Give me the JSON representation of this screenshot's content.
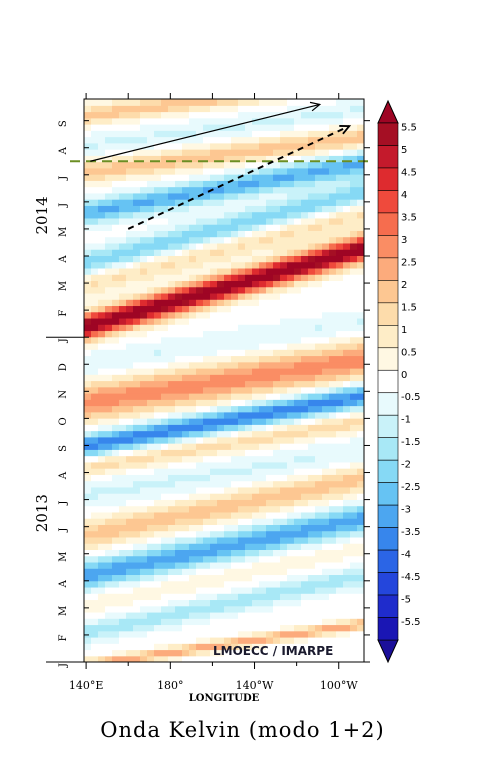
{
  "chart_data": {
    "type": "heatmap",
    "title": "Onda Kelvin (modo 1+2)",
    "xlabel": "LONGITUDE",
    "ylabel": "",
    "credit": "LMOECC / IMARPE",
    "x_ticks": [
      "140°E",
      "180°",
      "140°W",
      "100°W"
    ],
    "x_tick_lon": [
      140,
      180,
      220,
      260
    ],
    "xlim": [
      139,
      272
    ],
    "y_month_labels": [
      "J",
      "F",
      "M",
      "A",
      "M",
      "J",
      "J",
      "A",
      "S",
      "O",
      "N",
      "D",
      "J",
      "F",
      "M",
      "A",
      "M",
      "J",
      "J",
      "A",
      "S"
    ],
    "y_month_index": [
      0,
      1,
      2,
      3,
      4,
      5,
      6,
      7,
      8,
      9,
      10,
      11,
      12,
      13,
      14,
      15,
      16,
      17,
      18,
      19,
      20
    ],
    "year_labels": [
      "2013",
      "2014"
    ],
    "year_center_month": [
      5.5,
      16.5
    ],
    "ylim_months": [
      0,
      20.8
    ],
    "colorbar": {
      "labels": [
        "5.5",
        "5",
        "4.5",
        "4",
        "3.5",
        "3",
        "2.5",
        "2",
        "1.5",
        "1",
        "0.5",
        "0",
        "-0.5",
        "-1",
        "-1.5",
        "-2",
        "-2.5",
        "-3",
        "-3.5",
        "-4",
        "-4.5",
        "-5",
        "-5.5"
      ],
      "colors": [
        "#a50f24",
        "#c41a2c",
        "#de2b2f",
        "#ef4a3c",
        "#f66d4e",
        "#fa8d64",
        "#fcab7c",
        "#fdc792",
        "#fddcab",
        "#feedc7",
        "#fff8e3",
        "#ffffff",
        "#e8fafd",
        "#c9f2f9",
        "#a8e8f6",
        "#86d9f5",
        "#66c3f3",
        "#4ca6f0",
        "#3786ec",
        "#2b65e6",
        "#2446dc",
        "#1f2ccc",
        "#1a16b4"
      ],
      "over_color": "#9e0524",
      "under_color": "#1b0f9a"
    },
    "bands": [
      {
        "center_lon": 140,
        "month_at_lon": -0.1,
        "slope_months_per_deg": 0.0115,
        "half_width": 0.2,
        "value": 2.5
      },
      {
        "center_lon": 140,
        "month_at_lon": 1.1,
        "slope_months_per_deg": 0.016,
        "half_width": 0.4,
        "value": -1.5
      },
      {
        "center_lon": 140,
        "month_at_lon": 2.2,
        "slope_months_per_deg": 0.016,
        "half_width": 0.5,
        "value": 0.5
      },
      {
        "center_lon": 140,
        "month_at_lon": 3.2,
        "slope_months_per_deg": 0.016,
        "half_width": 0.55,
        "value": -3.0
      },
      {
        "center_lon": 140,
        "month_at_lon": 4.7,
        "slope_months_per_deg": 0.016,
        "half_width": 0.55,
        "value": 2.0
      },
      {
        "center_lon": 140,
        "month_at_lon": 6.2,
        "slope_months_per_deg": 0.012,
        "half_width": 0.6,
        "value": -0.8
      },
      {
        "center_lon": 140,
        "month_at_lon": 7.2,
        "slope_months_per_deg": 0.013,
        "half_width": 0.4,
        "value": 1.5
      },
      {
        "center_lon": 140,
        "month_at_lon": 8.0,
        "slope_months_per_deg": 0.014,
        "half_width": 0.45,
        "value": -3.5
      },
      {
        "center_lon": 140,
        "month_at_lon": 9.6,
        "slope_months_per_deg": 0.012,
        "half_width": 0.7,
        "value": 3.0
      },
      {
        "center_lon": 140,
        "month_at_lon": 11.0,
        "slope_months_per_deg": 0.012,
        "half_width": 0.45,
        "value": -0.8
      },
      {
        "center_lon": 140,
        "month_at_lon": 12.4,
        "slope_months_per_deg": 0.022,
        "half_width": 0.5,
        "value": 6.0
      },
      {
        "center_lon": 140,
        "month_at_lon": 14.0,
        "slope_months_per_deg": 0.02,
        "half_width": 0.5,
        "value": 1.5
      },
      {
        "center_lon": 140,
        "month_at_lon": 14.7,
        "slope_months_per_deg": 0.02,
        "half_width": 0.5,
        "value": -2.2
      },
      {
        "center_lon": 140,
        "month_at_lon": 16.6,
        "slope_months_per_deg": 0.014,
        "half_width": 0.45,
        "value": -2.8
      },
      {
        "center_lon": 140,
        "month_at_lon": 18.1,
        "slope_months_per_deg": 0.01,
        "half_width": 0.4,
        "value": 2.0
      },
      {
        "center_lon": 140,
        "month_at_lon": 19.1,
        "slope_months_per_deg": 0.01,
        "half_width": 0.4,
        "value": -0.8
      },
      {
        "center_lon": 140,
        "month_at_lon": 20.2,
        "slope_months_per_deg": 0.01,
        "half_width": 0.35,
        "value": 2.0
      }
    ],
    "annotations": {
      "dashed_hline_month": 18.5,
      "dashed_hline_color": "#6b8e23",
      "arrow_solid": {
        "from": [
          142,
          18.5
        ],
        "to": [
          251,
          20.6
        ]
      },
      "arrow_dashed": {
        "from": [
          160,
          16.0
        ],
        "to": [
          265,
          19.8
        ]
      }
    }
  }
}
